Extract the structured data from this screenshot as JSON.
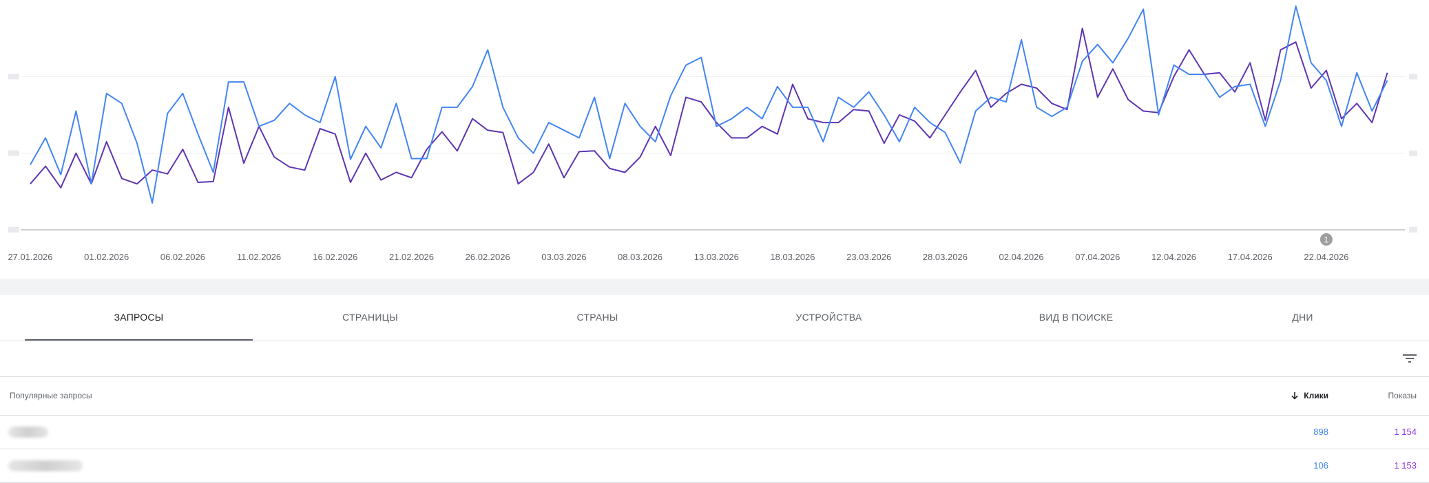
{
  "chart_data": {
    "type": "line",
    "x_tick_labels": [
      "27.01.2026",
      "01.02.2026",
      "06.02.2026",
      "11.02.2026",
      "16.02.2026",
      "21.02.2026",
      "26.02.2026",
      "03.03.2026",
      "08.03.2026",
      "13.03.2026",
      "18.03.2026",
      "23.03.2026",
      "28.03.2026",
      "02.04.2026",
      "07.04.2026",
      "12.04.2026",
      "17.04.2026",
      "22.04.2026"
    ],
    "annotation": "1",
    "annotation_index": 85,
    "ylim": [
      0,
      3
    ],
    "grid": true,
    "colors": {
      "clicks": "#4285f4",
      "impressions": "#5e35b1"
    },
    "series": [
      {
        "values": [
          0.85,
          1.2,
          0.72,
          1.55,
          0.6,
          1.78,
          1.65,
          1.13,
          0.35,
          1.52,
          1.78,
          1.25,
          0.75,
          1.93,
          1.93,
          1.35,
          1.43,
          1.65,
          1.5,
          1.4,
          2.0,
          0.92,
          1.35,
          1.07,
          1.65,
          0.93,
          0.93,
          1.6,
          1.6,
          1.87,
          2.35,
          1.6,
          1.2,
          1.0,
          1.4,
          1.3,
          1.2,
          1.73,
          0.93,
          1.65,
          1.35,
          1.15,
          1.75,
          2.15,
          2.25,
          1.35,
          1.45,
          1.6,
          1.45,
          1.87,
          1.6,
          1.6,
          1.15,
          1.73,
          1.6,
          1.8,
          1.5,
          1.15,
          1.6,
          1.4,
          1.27,
          0.87,
          1.55,
          1.73,
          1.67,
          2.48,
          1.6,
          1.48,
          1.6,
          2.2,
          2.42,
          2.18,
          2.5,
          2.88,
          1.5,
          2.15,
          2.03,
          2.03,
          1.73,
          1.87,
          1.9,
          1.35,
          1.95,
          2.92,
          2.18,
          1.95,
          1.35,
          2.05,
          1.55,
          1.95
        ]
      },
      {
        "values": [
          0.6,
          0.83,
          0.55,
          1.0,
          0.6,
          1.15,
          0.67,
          0.6,
          0.78,
          0.73,
          1.05,
          0.62,
          0.63,
          1.6,
          0.87,
          1.35,
          0.95,
          0.82,
          0.78,
          1.32,
          1.25,
          0.62,
          1.0,
          0.65,
          0.75,
          0.68,
          1.05,
          1.28,
          1.03,
          1.45,
          1.3,
          1.27,
          0.6,
          0.75,
          1.12,
          0.68,
          1.02,
          1.03,
          0.8,
          0.75,
          0.95,
          1.35,
          0.97,
          1.73,
          1.67,
          1.4,
          1.2,
          1.2,
          1.35,
          1.25,
          1.9,
          1.45,
          1.4,
          1.4,
          1.57,
          1.55,
          1.13,
          1.5,
          1.42,
          1.2,
          1.5,
          1.8,
          2.08,
          1.6,
          1.78,
          1.9,
          1.85,
          1.65,
          1.57,
          2.63,
          1.73,
          2.1,
          1.7,
          1.55,
          1.53,
          2.0,
          2.35,
          2.03,
          2.05,
          1.8,
          2.18,
          1.43,
          2.35,
          2.45,
          1.85,
          2.08,
          1.45,
          1.65,
          1.4,
          2.05
        ]
      }
    ]
  },
  "tabs": [
    {
      "label": "ЗАПРОСЫ"
    },
    {
      "label": "СТРАНИЦЫ"
    },
    {
      "label": "СТРАНЫ"
    },
    {
      "label": "УСТРОЙСТВА"
    },
    {
      "label": "ВИД В ПОИСКЕ"
    },
    {
      "label": "ДНИ"
    }
  ],
  "toolbar": {
    "filter_icon": "filter-list-icon"
  },
  "table": {
    "header": {
      "query": "Популярные запросы",
      "clicks": "Клики",
      "impressions": "Показы",
      "sort_icon": "arrow-down-icon"
    },
    "rows": [
      {
        "clicks": "898",
        "impressions": "1 154"
      },
      {
        "clicks": "106",
        "impressions": "1 153"
      }
    ]
  }
}
